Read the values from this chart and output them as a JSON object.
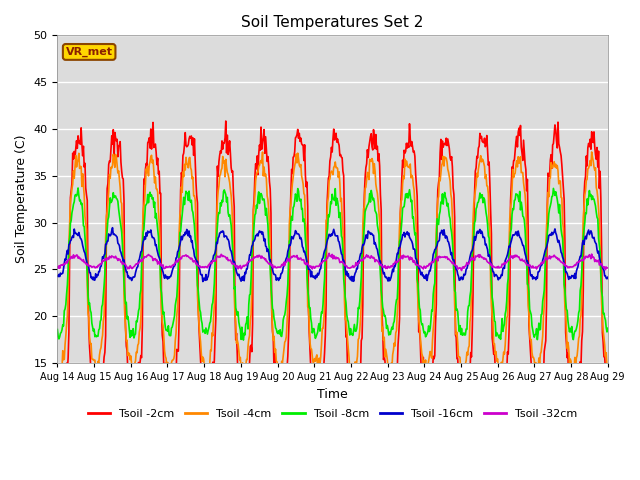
{
  "title": "Soil Temperatures Set 2",
  "xlabel": "Time",
  "ylabel": "Soil Temperature (C)",
  "ylim": [
    15,
    50
  ],
  "bg_color": "#dcdcdc",
  "fig_color": "#ffffff",
  "vr_met_label": "VR_met",
  "x_tick_labels": [
    "Aug 14",
    "Aug 15",
    "Aug 16",
    "Aug 17",
    "Aug 18",
    "Aug 19",
    "Aug 20",
    "Aug 21",
    "Aug 22",
    "Aug 23",
    "Aug 24",
    "Aug 25",
    "Aug 26",
    "Aug 27",
    "Aug 28",
    "Aug 29"
  ],
  "series": [
    {
      "label": "Tsoil -2cm",
      "color": "#ff0000",
      "amplitude": 13.5,
      "base_temp": 25.5,
      "phase_hour": 14.0,
      "sharpness": 3.0,
      "noise": 0.8,
      "lag_days": 0.0
    },
    {
      "label": "Tsoil -4cm",
      "color": "#ff8800",
      "amplitude": 11.0,
      "base_temp": 25.5,
      "phase_hour": 14.5,
      "sharpness": 2.0,
      "noise": 0.5,
      "lag_days": 0.05
    },
    {
      "label": "Tsoil -8cm",
      "color": "#00ee00",
      "amplitude": 7.5,
      "base_temp": 25.5,
      "phase_hour": 15.5,
      "sharpness": 1.5,
      "noise": 0.4,
      "lag_days": 0.1
    },
    {
      "label": "Tsoil -16cm",
      "color": "#0000cc",
      "amplitude": 2.5,
      "base_temp": 26.5,
      "phase_hour": 17.0,
      "sharpness": 1.0,
      "noise": 0.2,
      "lag_days": 0.2
    },
    {
      "label": "Tsoil -32cm",
      "color": "#cc00cc",
      "amplitude": 0.6,
      "base_temp": 25.8,
      "phase_hour": 20.0,
      "sharpness": 1.0,
      "noise": 0.1,
      "lag_days": 0.35
    }
  ],
  "linewidth": 1.2
}
